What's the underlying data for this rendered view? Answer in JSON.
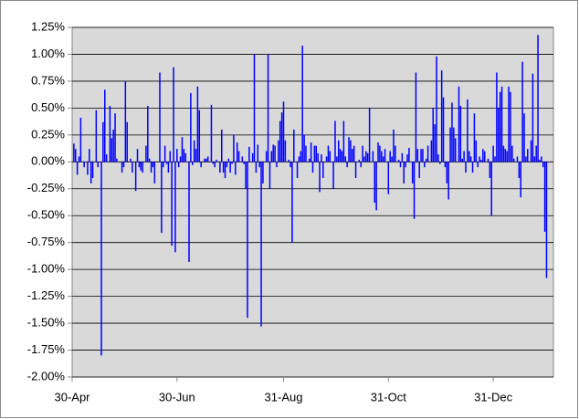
{
  "chart_data": {
    "type": "bar",
    "color": "#0000ff",
    "grid": true,
    "xlim": [
      0,
      280
    ],
    "xticks": [
      {
        "value": 0,
        "label": "30-Apr"
      },
      {
        "value": 61,
        "label": "30-Jun"
      },
      {
        "value": 123,
        "label": "31-Aug"
      },
      {
        "value": 184,
        "label": "31-Oct"
      },
      {
        "value": 245,
        "label": "31-Dec"
      }
    ],
    "ylim": [
      -2,
      1.25
    ],
    "yticks": [
      {
        "value": 1.25,
        "label": "1.25%"
      },
      {
        "value": 1,
        "label": "1.00%"
      },
      {
        "value": 0.75,
        "label": "0.75%"
      },
      {
        "value": 0.5,
        "label": "0.50%"
      },
      {
        "value": 0.25,
        "label": "0.25%"
      },
      {
        "value": 0,
        "label": "0.00%"
      },
      {
        "value": -0.25,
        "label": "-0.25%"
      },
      {
        "value": -0.5,
        "label": "-0.50%"
      },
      {
        "value": -0.75,
        "label": "-0.75%"
      },
      {
        "value": -1,
        "label": "-1.00%"
      },
      {
        "value": -1.25,
        "label": "-1.25%"
      },
      {
        "value": -1.5,
        "label": "-1.50%"
      },
      {
        "value": -1.75,
        "label": "-1.75%"
      },
      {
        "value": -2,
        "label": "-2.00%"
      }
    ],
    "x": [
      1,
      2,
      3,
      4,
      5,
      7,
      9,
      10,
      11,
      12,
      14,
      15,
      17,
      18,
      19,
      20,
      22,
      23,
      24,
      25,
      26,
      29,
      30,
      31,
      32,
      34,
      35,
      37,
      38,
      39,
      40,
      41,
      43,
      44,
      45,
      46,
      47,
      48,
      51,
      52,
      53,
      54,
      55,
      56,
      57,
      58,
      59,
      60,
      61,
      62,
      63,
      64,
      65,
      66,
      68,
      69,
      70,
      71,
      72,
      73,
      74,
      75,
      77,
      78,
      79,
      81,
      82,
      83,
      84,
      86,
      87,
      88,
      89,
      90,
      91,
      92,
      93,
      94,
      95,
      96,
      97,
      99,
      100,
      101,
      102,
      103,
      105,
      106,
      107,
      108,
      109,
      110,
      111,
      113,
      114,
      115,
      116,
      117,
      118,
      119,
      120,
      121,
      122,
      123,
      124,
      126,
      127,
      128,
      129,
      131,
      132,
      133,
      134,
      135,
      136,
      138,
      139,
      140,
      141,
      142,
      143,
      144,
      145,
      146,
      148,
      149,
      150,
      152,
      153,
      154,
      155,
      156,
      157,
      158,
      159,
      160,
      161,
      162,
      163,
      164,
      165,
      167,
      168,
      169,
      170,
      171,
      172,
      173,
      175,
      176,
      177,
      178,
      179,
      180,
      181,
      182,
      184,
      185,
      186,
      187,
      188,
      190,
      191,
      192,
      193,
      194,
      195,
      196,
      198,
      199,
      200,
      201,
      202,
      203,
      204,
      205,
      206,
      207,
      209,
      210,
      211,
      212,
      213,
      214,
      215,
      216,
      217,
      218,
      219,
      220,
      221,
      222,
      223,
      225,
      226,
      227,
      228,
      229,
      230,
      231,
      232,
      233,
      234,
      235,
      236,
      237,
      238,
      239,
      240,
      242,
      243,
      244,
      245,
      246,
      247,
      248,
      249,
      250,
      251,
      252,
      253,
      254,
      255,
      256,
      257,
      259,
      260,
      261,
      262,
      263,
      264,
      265,
      267,
      268,
      269,
      270,
      271,
      272,
      273,
      274,
      275,
      276
    ],
    "values": [
      0.17,
      0.12,
      -0.12,
      0.05,
      0.41,
      -0.05,
      -0.12,
      0.12,
      -0.2,
      -0.15,
      0.48,
      -0.05,
      -1.8,
      0.37,
      0.67,
      0.07,
      0.52,
      0.22,
      0.3,
      0.45,
      0.03,
      -0.1,
      -0.05,
      0.75,
      0.37,
      0.03,
      -0.1,
      -0.27,
      0.12,
      -0.05,
      -0.08,
      -0.1,
      0.15,
      0.52,
      0.03,
      -0.1,
      -0.05,
      -0.2,
      0.83,
      -0.66,
      -0.05,
      0.15,
      -0.02,
      -0.1,
      0.1,
      -0.78,
      0.88,
      -0.84,
      0.12,
      -0.05,
      0.05,
      0.23,
      0.12,
      0.08,
      -0.93,
      0.64,
      -0.03,
      0.2,
      0.12,
      0.7,
      0.48,
      -0.05,
      0.03,
      0.03,
      0.05,
      0.53,
      -0.02,
      -0.05,
      0.02,
      -0.1,
      0.3,
      -0.1,
      -0.15,
      -0.05,
      0.03,
      -0.1,
      -0.02,
      0.25,
      -0.12,
      0.18,
      0.1,
      0.05,
      -0.02,
      -0.25,
      -1.45,
      0.14,
      0.08,
      1,
      -0.1,
      0.16,
      -0.05,
      -1.53,
      -0.2,
      0.1,
      1,
      -0.25,
      0.1,
      0.16,
      0.15,
      -0.05,
      0.2,
      0.38,
      0.46,
      0.56,
      0.2,
      0.02,
      -0.05,
      -0.75,
      0.3,
      -0.15,
      0.05,
      0.1,
      1.08,
      0.25,
      0.15,
      0.03,
      0.18,
      -0.1,
      0.15,
      0.15,
      0.08,
      -0.28,
      0.07,
      -0.15,
      0.05,
      0.15,
      0.1,
      -0.25,
      0.38,
      0.05,
      0.2,
      0.12,
      0.1,
      0.38,
      0.05,
      -0.05,
      0.23,
      0.2,
      0.12,
      0.15,
      -0.15,
      0.02,
      -0.05,
      0.15,
      0.05,
      0.1,
      0.08,
      0.5,
      0.1,
      -0.38,
      -0.45,
      0.18,
      0.15,
      0.1,
      0.05,
      0.12,
      -0.3,
      0.1,
      0.05,
      0.3,
      0.15,
      0.02,
      -0.05,
      0.08,
      -0.2,
      -0.05,
      0.07,
      0.13,
      -0.2,
      -0.53,
      0.83,
      0.12,
      -0.15,
      0.12,
      0.12,
      -0.05,
      0.03,
      0.15,
      0.2,
      0.5,
      0.35,
      0.98,
      0.07,
      -0.02,
      0.85,
      0.6,
      -0.05,
      -0.2,
      -0.35,
      0.32,
      0.55,
      0.32,
      0.22,
      0.7,
      0.52,
      0.03,
      0.1,
      -0.1,
      0.58,
      0.1,
      0.05,
      -0.1,
      0.45,
      0.2,
      -0.05,
      0.05,
      0.02,
      0.12,
      0.1,
      0.03,
      -0.15,
      -0.5,
      0.15,
      0.05,
      0.83,
      0.5,
      0.65,
      0.7,
      0.15,
      0.12,
      0.1,
      0.7,
      0.65,
      0.15,
      0.03,
      0.05,
      -0.15,
      -0.33,
      0.93,
      0.45,
      0.05,
      0.12,
      0.2,
      0.82,
      0.05,
      0.15,
      1.18,
      0.02,
      0.05,
      -0.05,
      -0.65,
      -1.08
    ]
  }
}
